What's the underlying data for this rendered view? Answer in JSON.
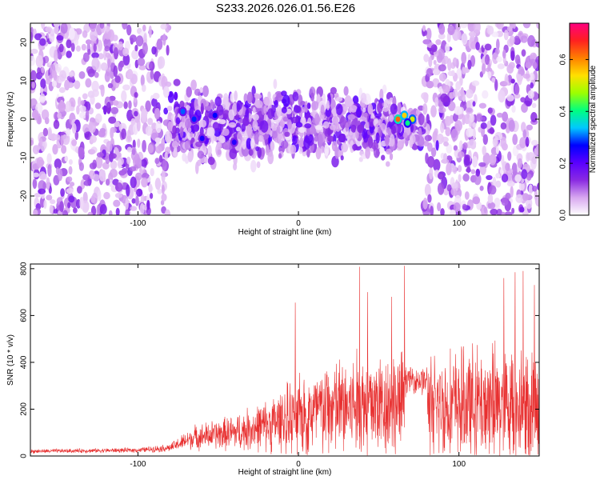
{
  "title": "S233.2026.026.01.56.E26",
  "chart_data": [
    {
      "type": "heatmap",
      "xlabel": "Height of straight line (km)",
      "ylabel": "Frequency (Hz)",
      "xlim": [
        -167,
        150
      ],
      "ylim": [
        -25,
        25
      ],
      "xticks": [
        -100,
        0,
        100
      ],
      "xtick_labels": [
        "-100",
        "0",
        "100"
      ],
      "yticks": [
        -20,
        -10,
        0,
        10,
        20
      ],
      "ytick_labels": [
        "-20",
        "-10",
        "0",
        "10",
        "20"
      ],
      "colorbar": {
        "label": "Normalized spectral amplitude",
        "range": [
          0.0,
          0.74
        ],
        "ticks": [
          0.0,
          0.2,
          0.4,
          0.6
        ],
        "tick_labels": [
          "0.0",
          "0.2",
          "0.4",
          "0.6"
        ],
        "colors": [
          "#ffffff",
          "#d8a8f0",
          "#8a2be2",
          "#5a00ff",
          "#0000ff",
          "#00c8ff",
          "#00ff80",
          "#9cff00",
          "#ffe000",
          "#ff8000",
          "#ff2020",
          "#ff0080"
        ]
      },
      "hot_spots": [
        {
          "x": -72,
          "y": 2,
          "value": 0.3
        },
        {
          "x": -65,
          "y": 0,
          "value": 0.28
        },
        {
          "x": -60,
          "y": -5,
          "value": 0.25
        },
        {
          "x": -52,
          "y": 1,
          "value": 0.27
        },
        {
          "x": -40,
          "y": -6,
          "value": 0.24
        },
        {
          "x": 62,
          "y": 0,
          "value": 0.62
        },
        {
          "x": 66,
          "y": 1,
          "value": 0.55
        },
        {
          "x": 71,
          "y": 0,
          "value": 0.5
        },
        {
          "x": 68,
          "y": -1,
          "value": 0.4
        }
      ],
      "grid": false
    },
    {
      "type": "line",
      "xlabel": "Height of straight line (km)",
      "ylabel": "SNR (10 * v/v)",
      "xlim": [
        -167,
        150
      ],
      "ylim": [
        0,
        820
      ],
      "xticks": [
        -100,
        0,
        100
      ],
      "xtick_labels": [
        "-100",
        "0",
        "100"
      ],
      "yticks": [
        0,
        200,
        400,
        600,
        800
      ],
      "ytick_labels": [
        "0",
        "200",
        "400",
        "600",
        "800"
      ],
      "color": "#e83030",
      "envelope": [
        {
          "x": -167,
          "base": 20,
          "spread": 10
        },
        {
          "x": -100,
          "base": 25,
          "spread": 12
        },
        {
          "x": -80,
          "base": 35,
          "spread": 20
        },
        {
          "x": -65,
          "base": 80,
          "spread": 60
        },
        {
          "x": -40,
          "base": 100,
          "spread": 90
        },
        {
          "x": -20,
          "base": 130,
          "spread": 130
        },
        {
          "x": 0,
          "base": 170,
          "spread": 200
        },
        {
          "x": 20,
          "base": 200,
          "spread": 250
        },
        {
          "x": 40,
          "base": 220,
          "spread": 280
        },
        {
          "x": 66,
          "base": 230,
          "spread": 260
        },
        {
          "x": 67,
          "base": 330,
          "spread": 60
        },
        {
          "x": 80,
          "base": 320,
          "spread": 80
        },
        {
          "x": 81,
          "base": 220,
          "spread": 260
        },
        {
          "x": 120,
          "base": 220,
          "spread": 300
        },
        {
          "x": 150,
          "base": 220,
          "spread": 320
        }
      ],
      "peaks": [
        {
          "x": -2,
          "y": 655
        },
        {
          "x": 38,
          "y": 808
        },
        {
          "x": 43,
          "y": 700
        },
        {
          "x": 58,
          "y": 680
        },
        {
          "x": 66,
          "y": 812
        },
        {
          "x": 128,
          "y": 760
        },
        {
          "x": 135,
          "y": 785
        },
        {
          "x": 140,
          "y": 790
        },
        {
          "x": 147,
          "y": 730
        }
      ],
      "grid": false
    }
  ]
}
